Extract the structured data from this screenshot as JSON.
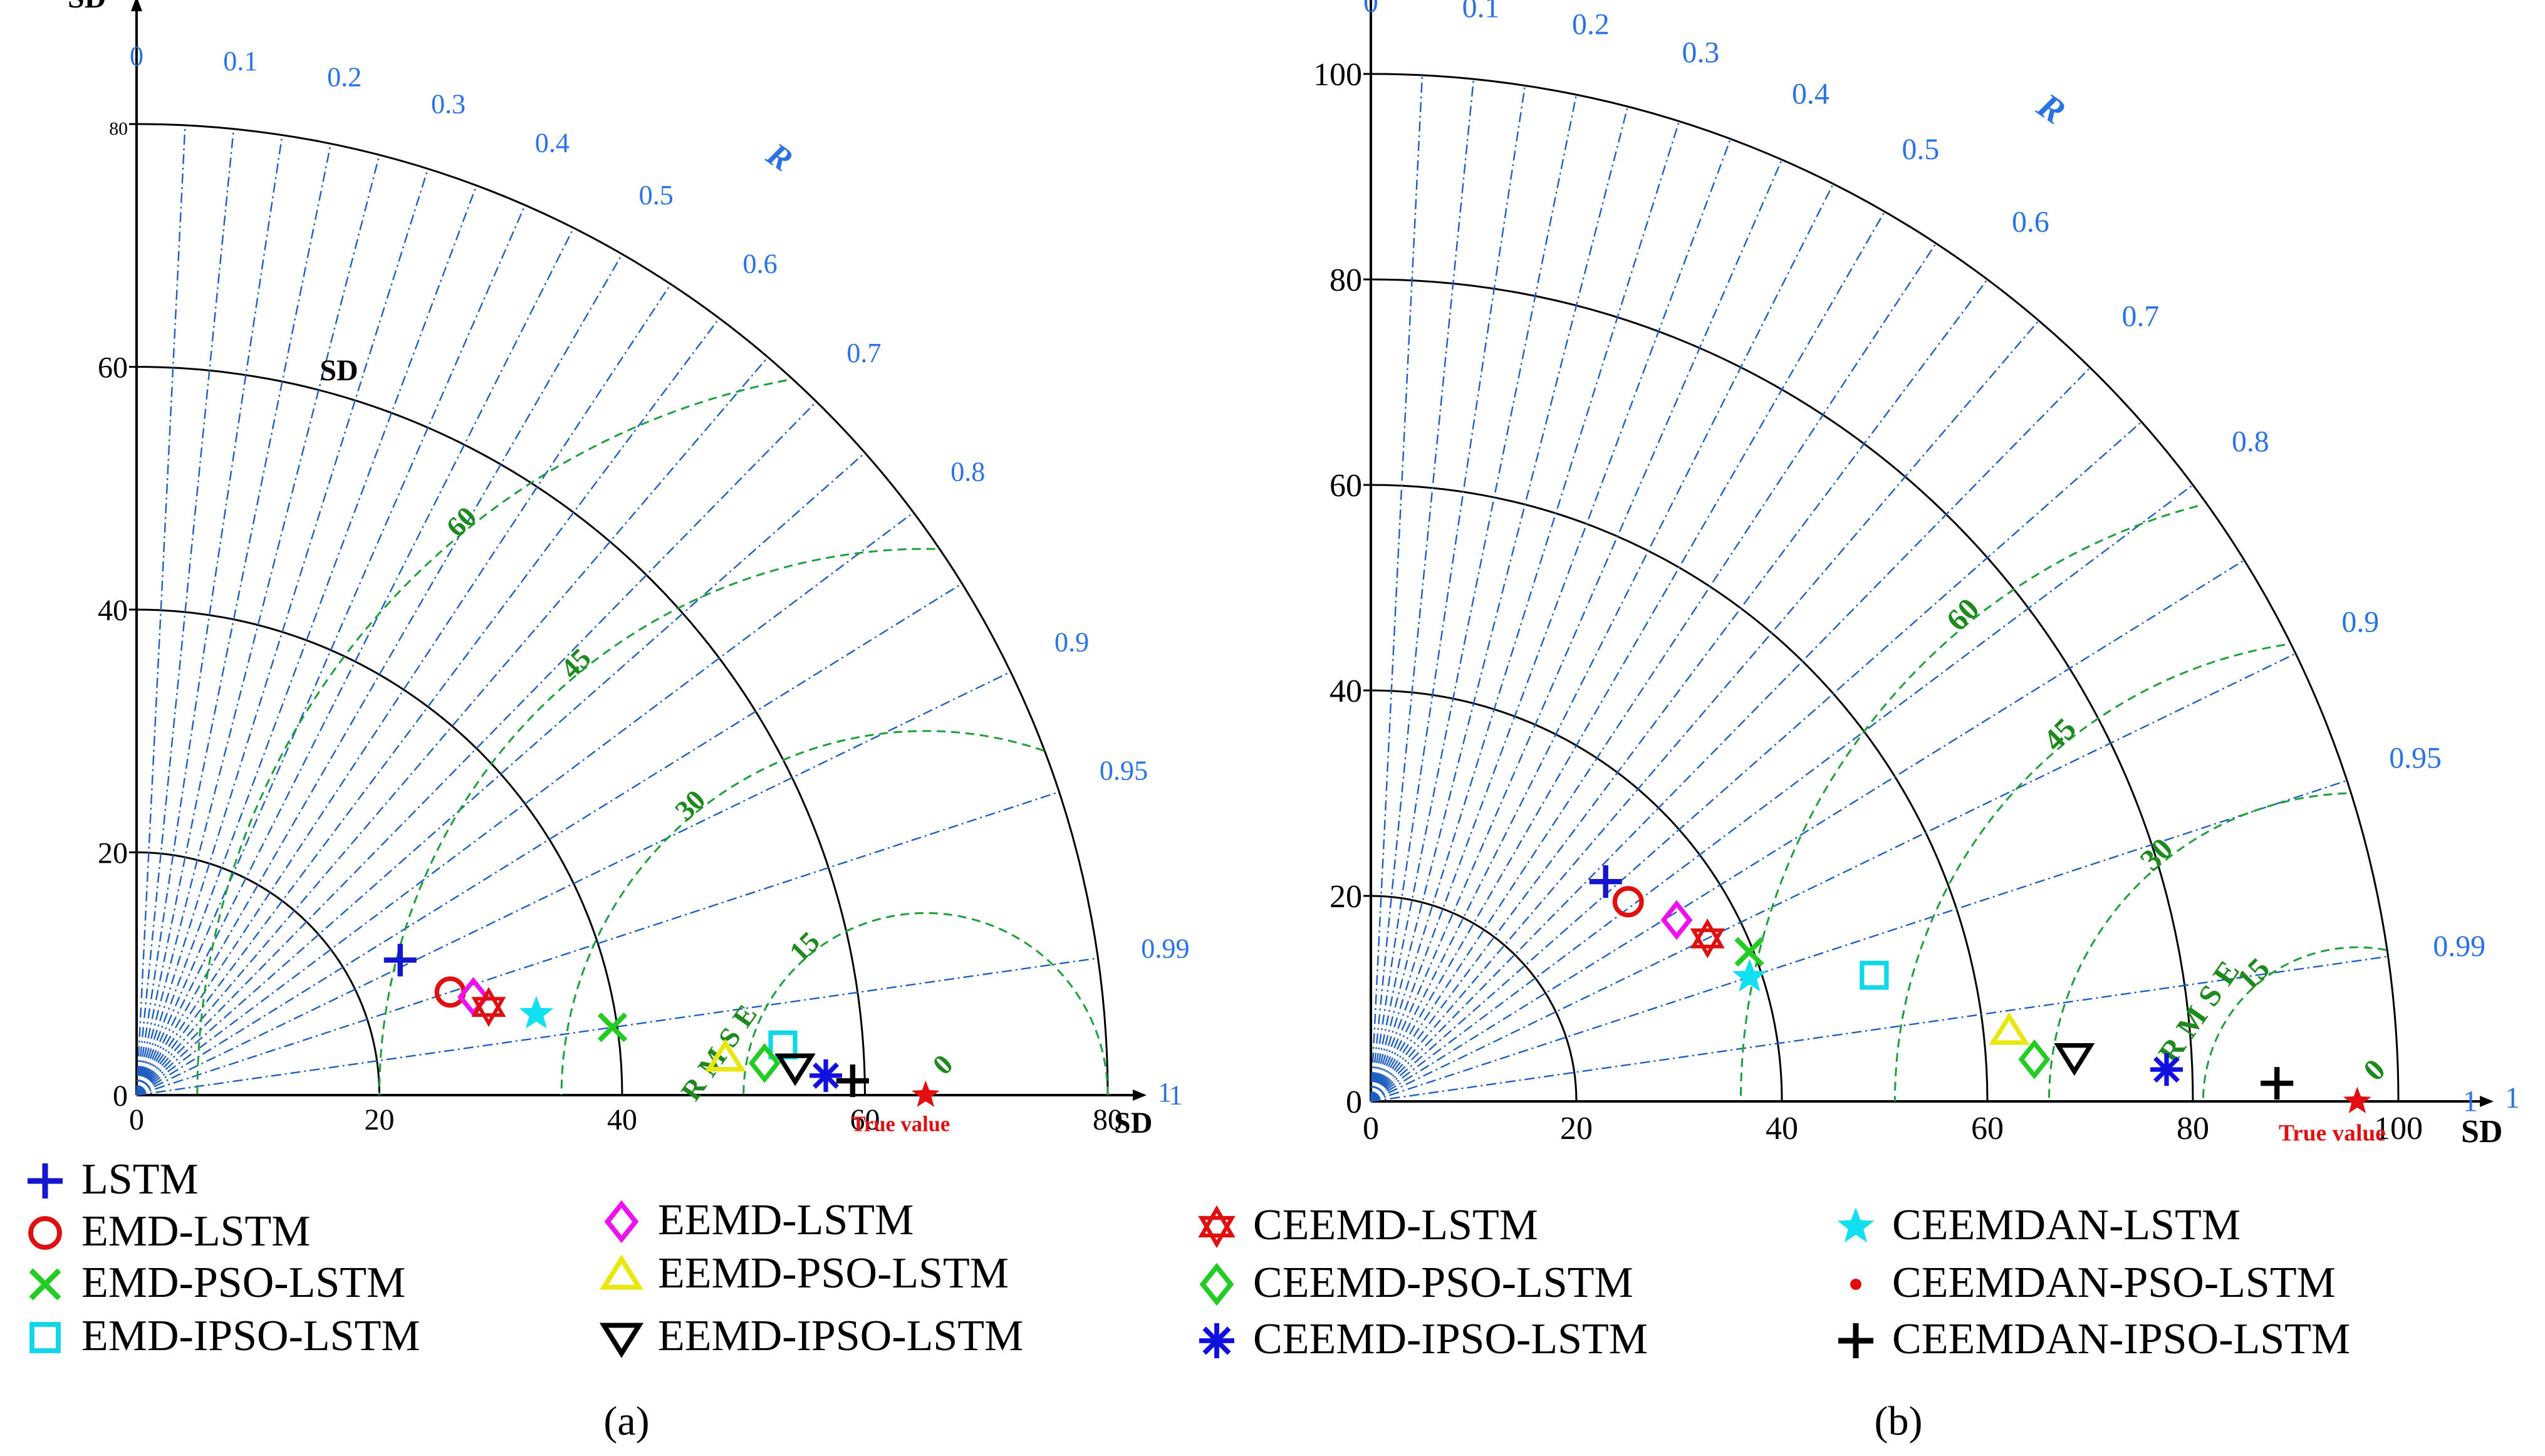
{
  "chart_data": [
    {
      "id": "a",
      "type": "taylor",
      "panel_label": "(a)",
      "sd_max": 80,
      "sd_ticks": [
        0,
        20,
        40,
        60,
        80
      ],
      "sd_axis_label": "SD",
      "sd_arc_label": "SD",
      "corr_axis_label": "R",
      "corr_ticks": [
        0,
        0.1,
        0.2,
        0.3,
        0.4,
        0.5,
        0.6,
        0.7,
        0.8,
        0.9,
        0.95,
        0.99,
        1
      ],
      "rmse_label": "RMSE",
      "rmse_levels": [
        0,
        15,
        30,
        45,
        60
      ],
      "true_value_label": "True value",
      "ref_sd": 65,
      "points": [
        {
          "model": "LSTM",
          "sd": 24.4,
          "r": 0.89
        },
        {
          "model": "EMD-LSTM",
          "sd": 27.2,
          "r": 0.95
        },
        {
          "model": "EEMD-LSTM",
          "sd": 28.9,
          "r": 0.96
        },
        {
          "model": "CEEMD-LSTM",
          "sd": 29.9,
          "r": 0.97
        },
        {
          "model": "CEEMDAN-LSTM",
          "sd": 33.6,
          "r": 0.98
        },
        {
          "model": "EMD-PSO-LSTM",
          "sd": 39.6,
          "r": 0.99
        },
        {
          "model": "EEMD-PSO-LSTM",
          "sd": 48.6,
          "r": 0.998
        },
        {
          "model": "EMD-IPSO-LSTM",
          "sd": 53.4,
          "r": 0.997
        },
        {
          "model": "CEEMD-PSO-LSTM",
          "sd": 51.8,
          "r": 0.9987
        },
        {
          "model": "EEMD-IPSO-LSTM",
          "sd": 54.3,
          "r": 0.9991
        },
        {
          "model": "CEEMD-IPSO-LSTM",
          "sd": 56.8,
          "r": 0.9996
        },
        {
          "model": "CEEMDAN-IPSO-LSTM",
          "sd": 59.0,
          "r": 0.9998
        },
        {
          "model": "CEEMDAN-PSO-LSTM",
          "sd": 65,
          "r": 1.0
        }
      ]
    },
    {
      "id": "b",
      "type": "taylor",
      "panel_label": "(b)",
      "sd_max": 100,
      "sd_ticks": [
        0,
        20,
        40,
        60,
        80,
        100
      ],
      "sd_axis_label": "SD",
      "corr_axis_label": "R",
      "corr_ticks": [
        0,
        0.1,
        0.2,
        0.3,
        0.4,
        0.5,
        0.6,
        0.7,
        0.8,
        0.9,
        0.95,
        0.99,
        1
      ],
      "rmse_label": "RMSE",
      "rmse_levels": [
        0,
        15,
        30,
        45,
        60
      ],
      "true_value_label": "True value",
      "ref_sd": 96,
      "points": [
        {
          "model": "LSTM",
          "sd": 31.3,
          "r": 0.73
        },
        {
          "model": "EMD-LSTM",
          "sd": 31.7,
          "r": 0.79
        },
        {
          "model": "EEMD-LSTM",
          "sd": 34.6,
          "r": 0.86
        },
        {
          "model": "CEEMD-LSTM",
          "sd": 36.4,
          "r": 0.9
        },
        {
          "model": "EMD-PSO-LSTM",
          "sd": 39.6,
          "r": 0.93
        },
        {
          "model": "CEEMDAN-LSTM",
          "sd": 38.8,
          "r": 0.95
        },
        {
          "model": "EMD-IPSO-LSTM",
          "sd": 50.5,
          "r": 0.97
        },
        {
          "model": "EEMD-PSO-LSTM",
          "sd": 62.5,
          "r": 0.994
        },
        {
          "model": "CEEMD-PSO-LSTM",
          "sd": 64.7,
          "r": 0.998
        },
        {
          "model": "EEMD-IPSO-LSTM",
          "sd": 68.6,
          "r": 0.998
        },
        {
          "model": "CEEMD-IPSO-LSTM",
          "sd": 77.5,
          "r": 0.9992
        },
        {
          "model": "CEEMDAN-IPSO-LSTM",
          "sd": 88.2,
          "r": 0.9998
        },
        {
          "model": "CEEMDAN-PSO-LSTM",
          "sd": 96,
          "r": 1.0
        }
      ]
    }
  ],
  "legend": [
    {
      "label": "LSTM",
      "marker": "plus",
      "color": "#1515d0"
    },
    {
      "label": "EMD-LSTM",
      "marker": "circle",
      "color": "#e01010"
    },
    {
      "label": "EMD-PSO-LSTM",
      "marker": "x",
      "color": "#22cc22"
    },
    {
      "label": "EMD-IPSO-LSTM",
      "marker": "square",
      "color": "#10d8e8"
    },
    {
      "label": "EEMD-LSTM",
      "marker": "diamond",
      "color": "#ee10ee"
    },
    {
      "label": "EEMD-PSO-LSTM",
      "marker": "triangle-up",
      "color": "#e8e810"
    },
    {
      "label": "EEMD-IPSO-LSTM",
      "marker": "triangle-down",
      "color": "#000000"
    },
    {
      "label": "CEEMD-LSTM",
      "marker": "hexagram",
      "color": "#e01010"
    },
    {
      "label": "CEEMD-PSO-LSTM",
      "marker": "diamond",
      "color": "#22cc22"
    },
    {
      "label": "CEEMD-IPSO-LSTM",
      "marker": "asterisk",
      "color": "#1010e0"
    },
    {
      "label": "CEEMDAN-LSTM",
      "marker": "pentagram",
      "color": "#10e0f0"
    },
    {
      "label": "CEEMDAN-PSO-LSTM",
      "marker": "dot",
      "color": "#e01010"
    },
    {
      "label": "CEEMDAN-IPSO-LSTM",
      "marker": "plus",
      "color": "#000000"
    }
  ],
  "colors": {
    "axis": "#000000",
    "corr_lines": "#1f5fc0",
    "corr_text": "#2a73e6",
    "rmse": "#1ba03a",
    "rmse_text": "#1e8a1e",
    "true_value": "#e01010"
  }
}
